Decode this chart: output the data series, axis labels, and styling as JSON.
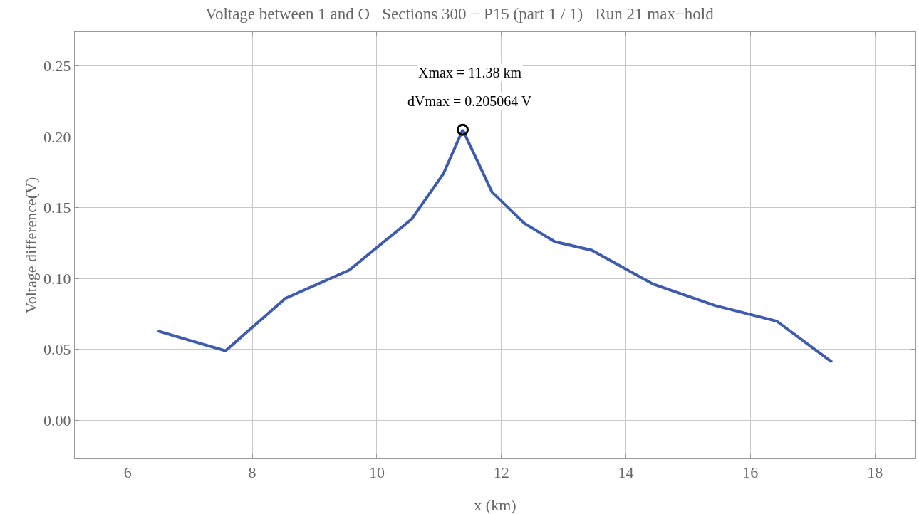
{
  "chart_data": {
    "type": "line",
    "title": "Voltage between 1 and O   Sections 300 − P15 (part 1 / 1)   Run 21 max−hold",
    "xlabel": "x (km)",
    "ylabel": "Voltage difference(V)",
    "series": [
      {
        "color": "#3f5bb0",
        "marker": "none",
        "line_style": "solid",
        "x": [
          6.48,
          7.57,
          8.53,
          9.56,
          10.56,
          11.07,
          11.38,
          11.85,
          12.37,
          12.86,
          13.45,
          14.44,
          15.43,
          16.42,
          17.31
        ],
        "values": [
          0.063,
          0.049,
          0.086,
          0.106,
          0.142,
          0.174,
          0.205,
          0.161,
          0.139,
          0.126,
          0.12,
          0.096,
          0.081,
          0.07,
          0.041
        ]
      },
      {
        "type": "scatter",
        "color": "#000000",
        "marker": "circle",
        "x": [
          11.38
        ],
        "values": [
          0.205
        ]
      }
    ],
    "annotations": [
      "Xmax = 11.38 km",
      "dVmax = 0.205064 V"
    ],
    "xlim": [
      5.15,
      18.65
    ],
    "ylim": [
      -0.027,
      0.274
    ],
    "xticks": [
      6,
      8,
      10,
      12,
      14,
      16,
      18
    ],
    "yticks": [
      {
        "value": 0,
        "label": "0.00"
      },
      {
        "value": 0.05,
        "label": "0.05"
      },
      {
        "value": 0.1,
        "label": "0.10"
      },
      {
        "value": 0.15,
        "label": "0.15"
      },
      {
        "value": 0.2,
        "label": "0.20"
      },
      {
        "value": 0.25,
        "label": "0.25"
      }
    ],
    "grid": true
  }
}
